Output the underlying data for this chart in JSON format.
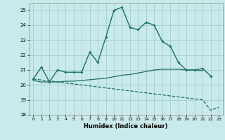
{
  "xlabel": "Humidex (Indice chaleur)",
  "background_color": "#c8eaea",
  "grid_color": "#a8cccc",
  "line_color": "#1a6e64",
  "ylim": [
    18,
    25.5
  ],
  "xlim": [
    -0.5,
    23.5
  ],
  "y_ticks": [
    18,
    19,
    20,
    21,
    22,
    23,
    24,
    25
  ],
  "x_ticks": [
    0,
    1,
    2,
    3,
    4,
    5,
    6,
    7,
    8,
    9,
    10,
    11,
    12,
    13,
    14,
    15,
    16,
    17,
    18,
    19,
    20,
    21,
    22,
    23
  ],
  "series1_x": [
    0,
    1,
    2,
    3,
    4,
    5,
    6,
    7,
    8,
    9,
    10,
    11,
    12,
    13,
    14,
    15,
    16,
    17,
    18,
    19,
    20,
    21,
    22
  ],
  "series1_y": [
    20.4,
    21.2,
    20.2,
    21.0,
    20.85,
    20.85,
    20.85,
    22.2,
    21.5,
    23.2,
    25.0,
    25.2,
    23.85,
    23.7,
    24.2,
    24.0,
    22.9,
    22.6,
    21.5,
    21.0,
    21.0,
    21.1,
    20.6
  ],
  "series2_x": [
    0,
    21,
    22,
    23
  ],
  "series2_y": [
    20.4,
    19.0,
    18.3,
    18.5
  ],
  "series3_x": [
    0,
    1,
    2,
    3,
    4,
    5,
    6,
    7,
    8,
    9,
    10,
    11,
    12,
    13,
    14,
    15,
    16,
    17,
    18,
    19,
    20,
    21
  ],
  "series3_y": [
    20.3,
    20.2,
    20.2,
    20.2,
    20.25,
    20.25,
    20.3,
    20.35,
    20.4,
    20.45,
    20.55,
    20.65,
    20.7,
    20.8,
    20.9,
    21.0,
    21.05,
    21.05,
    21.05,
    21.0,
    21.0,
    20.95
  ]
}
